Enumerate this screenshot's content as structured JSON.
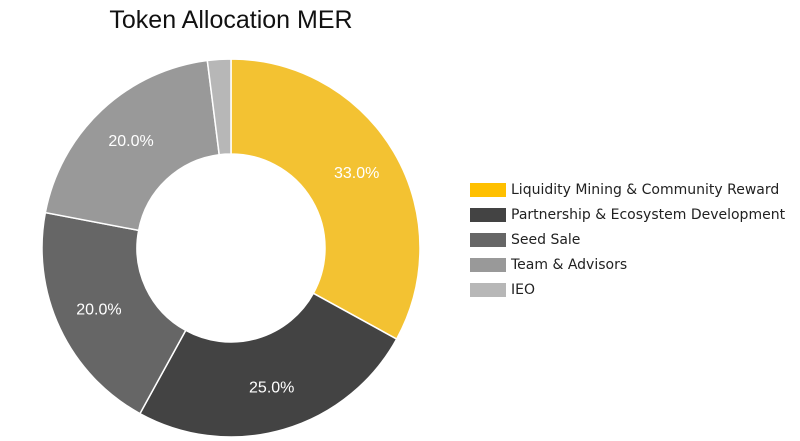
{
  "chart_data": {
    "type": "pie",
    "title": "Token Allocation MER",
    "categories": [
      "Liquidity Mining & Community Reward",
      "Partnership & Ecosystem Development",
      "Seed Sale",
      "Team & Advisors",
      "IEO"
    ],
    "values": [
      33.0,
      25.0,
      20.0,
      20.0,
      2.0
    ],
    "labels": [
      "33.0%",
      "25.0%",
      "20.0%",
      "20.0%",
      ""
    ],
    "colors": [
      "#f3c232",
      "#434343",
      "#666666",
      "#999999",
      "#b7b7b7"
    ],
    "legend_swatch_colors": [
      "#ffc000",
      "#434343",
      "#666666",
      "#999999",
      "#b7b7b7"
    ],
    "donut": true,
    "legend_position": "right"
  }
}
